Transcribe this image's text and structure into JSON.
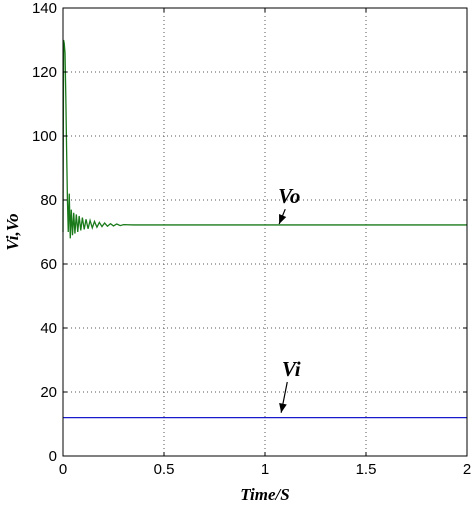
{
  "chart_data": {
    "type": "line",
    "title": "",
    "xlabel": "Time/S",
    "ylabel": "Vi,Vo",
    "xlim": [
      0,
      2
    ],
    "ylim": [
      0,
      140
    ],
    "xticks": [
      "0",
      "0.5",
      "1",
      "1.5",
      "2"
    ],
    "yticks": [
      "0",
      "20",
      "40",
      "60",
      "80",
      "100",
      "120",
      "140"
    ],
    "grid": true,
    "legend": "none",
    "series": [
      {
        "color": "#1a7a1a",
        "x": [
          0,
          0.003,
          0.006,
          0.01,
          0.014,
          0.018,
          0.022,
          0.026,
          0.031,
          0.036,
          0.041,
          0.047,
          0.053,
          0.059,
          0.066,
          0.073,
          0.08,
          0.088,
          0.096,
          0.105,
          0.114,
          0.124,
          0.134,
          0.145,
          0.156,
          0.168,
          0.18,
          0.193,
          0.206,
          0.22,
          0.235,
          0.25,
          0.266,
          0.283,
          0.3,
          0.35,
          0.4,
          0.5,
          0.6,
          1.0,
          1.5,
          2.0
        ],
        "values": [
          70,
          130,
          129,
          126,
          112,
          95,
          80,
          70,
          82,
          68,
          77,
          69,
          76,
          69.5,
          75.5,
          70,
          75,
          70.5,
          74.5,
          70.8,
          74,
          71,
          73.6,
          71.3,
          73.3,
          71.5,
          73,
          71.7,
          72.8,
          71.8,
          72.6,
          71.9,
          72.5,
          72,
          72.3,
          72.2,
          72.2,
          72.2,
          72.2,
          72.2,
          72.2,
          72.2
        ]
      },
      {
        "color": "#1a1acc",
        "x": [
          0,
          2
        ],
        "values": [
          12,
          12
        ]
      }
    ],
    "annotations": [
      {
        "text": "Vo",
        "x": 1.12,
        "y": 79,
        "arrow_to_x": 1.07,
        "arrow_to_y": 72.5
      },
      {
        "text": "Vi",
        "x": 1.13,
        "y": 25,
        "arrow_to_x": 1.08,
        "arrow_to_y": 13.5
      }
    ]
  }
}
